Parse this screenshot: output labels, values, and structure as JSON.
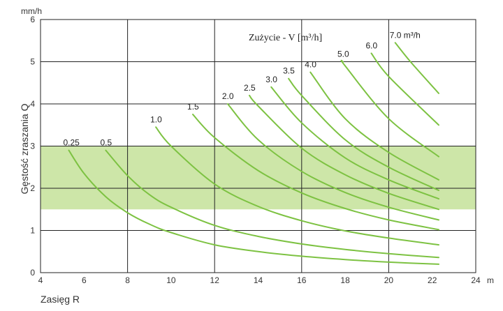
{
  "chart_data": {
    "type": "line",
    "title": "",
    "annotation": "Zużycie - V [m³/h]",
    "xlabel": "Zasięg R",
    "ylabel": "Gęstość zraszania Q",
    "x_unit": "m",
    "y_unit": "mm/h",
    "xlim": [
      4,
      24
    ],
    "ylim": [
      0,
      6
    ],
    "x_ticks": [
      4,
      6,
      8,
      10,
      12,
      14,
      16,
      18,
      20,
      22,
      24
    ],
    "y_ticks": [
      0,
      1,
      2,
      3,
      4,
      5,
      6
    ],
    "x_major_grid": [
      8,
      12,
      16,
      20,
      24
    ],
    "y_major_grid": [
      1,
      2,
      3,
      4,
      5,
      6
    ],
    "grid": true,
    "highlight_band": {
      "y_from": 1.5,
      "y_to": 3.0,
      "color": "#cde6a8"
    },
    "line_color": "#7dc242",
    "series": [
      {
        "name": "0.25",
        "label": "0.25",
        "x": [
          5.3,
          6,
          7,
          8,
          9,
          10,
          12,
          14,
          16,
          18,
          20,
          22.3
        ],
        "y": [
          2.9,
          2.35,
          1.8,
          1.42,
          1.15,
          0.95,
          0.66,
          0.5,
          0.39,
          0.31,
          0.25,
          0.2
        ]
      },
      {
        "name": "0.5",
        "label": "0.5",
        "x": [
          7.0,
          8,
          9,
          10,
          12,
          14,
          16,
          18,
          20,
          22.3
        ],
        "y": [
          2.9,
          2.3,
          1.85,
          1.55,
          1.12,
          0.86,
          0.68,
          0.55,
          0.45,
          0.36
        ]
      },
      {
        "name": "1.0",
        "label": "1.0",
        "x": [
          9.3,
          10,
          12,
          14,
          16,
          18,
          20,
          22.3
        ],
        "y": [
          3.45,
          3.0,
          2.1,
          1.57,
          1.23,
          0.99,
          0.82,
          0.66
        ]
      },
      {
        "name": "1.5",
        "label": "1.5",
        "x": [
          11.0,
          12,
          14,
          16,
          18,
          20,
          22.3
        ],
        "y": [
          3.75,
          3.2,
          2.42,
          1.89,
          1.52,
          1.25,
          1.02
        ]
      },
      {
        "name": "2.0",
        "label": "2.0",
        "x": [
          12.6,
          14,
          16,
          18,
          20,
          22.3
        ],
        "y": [
          4.0,
          3.15,
          2.4,
          1.9,
          1.55,
          1.25
        ]
      },
      {
        "name": "2.5",
        "label": "2.5",
        "x": [
          13.6,
          14,
          16,
          18,
          20,
          22.3
        ],
        "y": [
          4.2,
          3.95,
          2.95,
          2.32,
          1.88,
          1.5
        ]
      },
      {
        "name": "3.0",
        "label": "3.0",
        "x": [
          14.6,
          16,
          18,
          20,
          22.3
        ],
        "y": [
          4.4,
          3.55,
          2.72,
          2.2,
          1.75
        ]
      },
      {
        "name": "3.5",
        "label": "3.5",
        "x": [
          15.4,
          16,
          18,
          20,
          22.3
        ],
        "y": [
          4.6,
          4.2,
          3.15,
          2.5,
          1.95
        ]
      },
      {
        "name": "4.0",
        "label": "4.0",
        "x": [
          16.4,
          18,
          20,
          22.3
        ],
        "y": [
          4.75,
          3.65,
          2.85,
          2.2
        ]
      },
      {
        "name": "5.0",
        "label": "5.0",
        "x": [
          17.9,
          18,
          20,
          22.3
        ],
        "y": [
          5.0,
          4.9,
          3.65,
          2.75
        ]
      },
      {
        "name": "6.0",
        "label": "6.0",
        "x": [
          19.2,
          20,
          22.3
        ],
        "y": [
          5.2,
          4.65,
          3.5
        ]
      },
      {
        "name": "7.0 m3/h",
        "label": "7.0 m³/h",
        "x": [
          20.3,
          21,
          22.3
        ],
        "y": [
          5.45,
          5.0,
          4.25
        ]
      }
    ]
  }
}
